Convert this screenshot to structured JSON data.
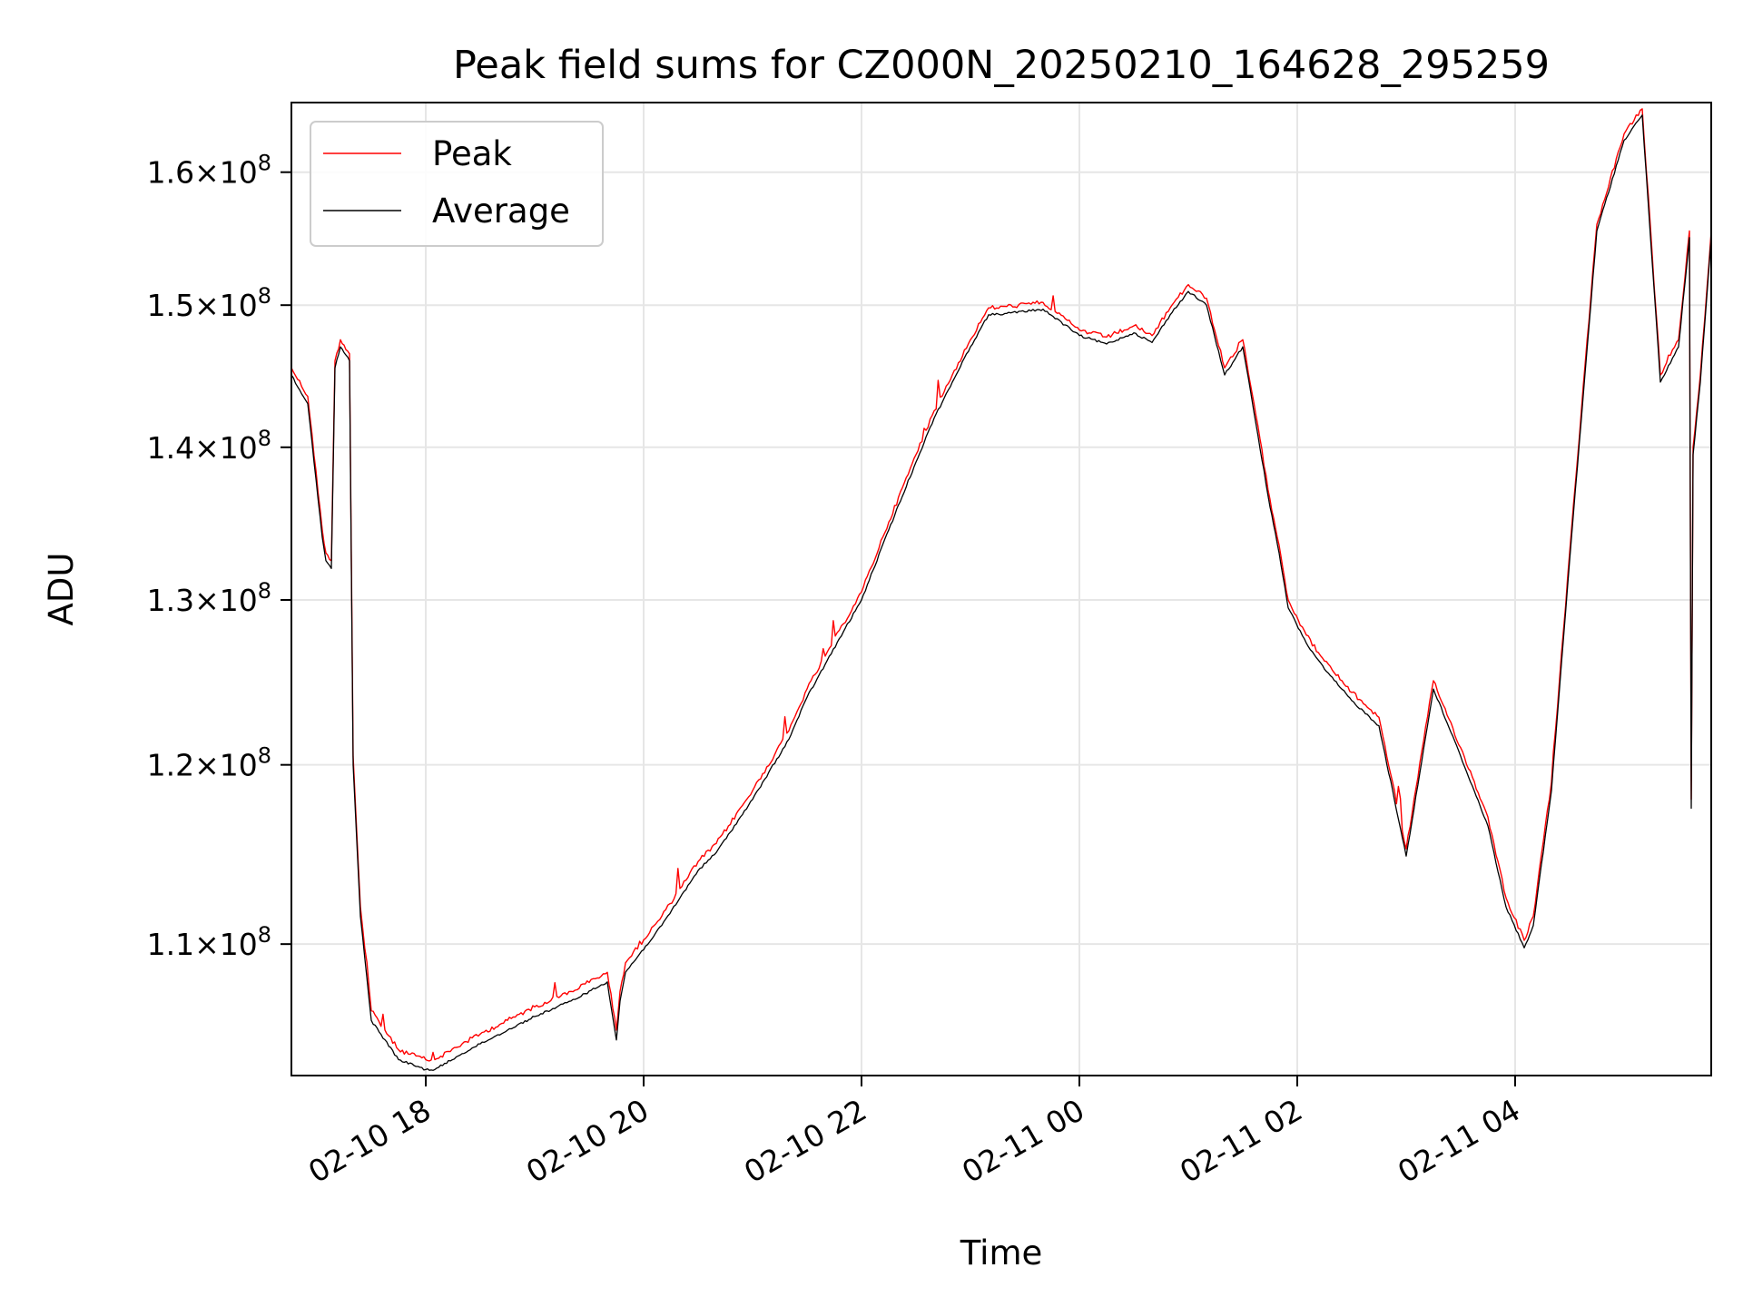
{
  "chart_data": {
    "type": "line",
    "title": "Peak field sums for CZ000N_20250210_164628_295259",
    "xlabel": "Time",
    "ylabel": "ADU",
    "x_scale": "time",
    "y_scale": "log",
    "xlim": [
      "2025-02-10 16:46",
      "2025-02-11 05:48"
    ],
    "ylim": [
      103200000,
      165500000
    ],
    "grid": true,
    "legend_position": "upper-left",
    "x_ticks": [
      {
        "value": "2025-02-10 18:00",
        "label": "02-10 18"
      },
      {
        "value": "2025-02-10 20:00",
        "label": "02-10 20"
      },
      {
        "value": "2025-02-10 22:00",
        "label": "02-10 22"
      },
      {
        "value": "2025-02-11 00:00",
        "label": "02-11 00"
      },
      {
        "value": "2025-02-11 02:00",
        "label": "02-11 02"
      },
      {
        "value": "2025-02-11 04:00",
        "label": "02-11 04"
      }
    ],
    "y_ticks": [
      {
        "value": 110000000,
        "mantissa": "1.1",
        "base": "10",
        "exponent": "8"
      },
      {
        "value": 120000000,
        "mantissa": "1.2",
        "base": "10",
        "exponent": "8"
      },
      {
        "value": 130000000,
        "mantissa": "1.3",
        "base": "10",
        "exponent": "8"
      },
      {
        "value": 140000000,
        "mantissa": "1.4",
        "base": "10",
        "exponent": "8"
      },
      {
        "value": 150000000,
        "mantissa": "1.5",
        "base": "10",
        "exponent": "8"
      },
      {
        "value": 160000000,
        "mantissa": "1.6",
        "base": "10",
        "exponent": "8"
      }
    ],
    "series": [
      {
        "name": "Peak",
        "color": "#ff0000",
        "x": [
          "2025-02-10 16:46",
          "2025-02-10 16:55",
          "2025-02-10 17:03",
          "2025-02-10 17:05",
          "2025-02-10 17:08",
          "2025-02-10 17:10",
          "2025-02-10 17:13",
          "2025-02-10 17:18",
          "2025-02-10 17:20",
          "2025-02-10 17:24",
          "2025-02-10 17:30",
          "2025-02-10 17:45",
          "2025-02-10 18:00",
          "2025-02-10 18:05",
          "2025-02-10 18:20",
          "2025-02-10 18:30",
          "2025-02-10 18:45",
          "2025-02-10 19:00",
          "2025-02-10 19:20",
          "2025-02-10 19:40",
          "2025-02-10 19:45",
          "2025-02-10 19:47",
          "2025-02-10 19:50",
          "2025-02-10 20:10",
          "2025-02-10 20:30",
          "2025-02-10 20:40",
          "2025-02-10 21:00",
          "2025-02-10 21:20",
          "2025-02-10 21:30",
          "2025-02-10 21:40",
          "2025-02-10 21:50",
          "2025-02-10 22:00",
          "2025-02-10 22:15",
          "2025-02-10 22:30",
          "2025-02-10 22:40",
          "2025-02-10 22:50",
          "2025-02-10 23:00",
          "2025-02-10 23:10",
          "2025-02-10 23:20",
          "2025-02-10 23:40",
          "2025-02-11 00:00",
          "2025-02-11 00:15",
          "2025-02-11 00:30",
          "2025-02-11 00:40",
          "2025-02-11 00:50",
          "2025-02-11 01:00",
          "2025-02-11 01:10",
          "2025-02-11 01:20",
          "2025-02-11 01:30",
          "2025-02-11 01:35",
          "2025-02-11 01:45",
          "2025-02-11 01:50",
          "2025-02-11 01:55",
          "2025-02-11 02:05",
          "2025-02-11 02:15",
          "2025-02-11 02:30",
          "2025-02-11 02:45",
          "2025-02-11 03:00",
          "2025-02-11 03:15",
          "2025-02-11 03:30",
          "2025-02-11 03:45",
          "2025-02-11 03:55",
          "2025-02-11 04:05",
          "2025-02-11 04:10",
          "2025-02-11 04:20",
          "2025-02-11 04:30",
          "2025-02-11 04:45",
          "2025-02-11 05:00",
          "2025-02-11 05:10",
          "2025-02-11 05:20",
          "2025-02-11 05:30",
          "2025-02-11 05:36",
          "2025-02-11 05:37",
          "2025-02-11 05:38",
          "2025-02-11 05:42",
          "2025-02-11 05:48"
        ],
        "values": [
          145500000,
          143500000,
          134500000,
          133000000,
          132500000,
          146000000,
          147500000,
          146500000,
          120500000,
          112000000,
          106500000,
          104500000,
          104000000,
          104000000,
          104800000,
          105300000,
          106000000,
          106700000,
          107500000,
          108500000,
          105500000,
          107500000,
          109000000,
          111500000,
          114500000,
          115500000,
          118500000,
          122000000,
          124500000,
          126500000,
          128500000,
          130500000,
          135000000,
          139500000,
          142500000,
          145000000,
          147500000,
          149800000,
          149900000,
          150200000,
          148200000,
          147700000,
          148500000,
          147800000,
          149800000,
          151500000,
          150500000,
          145500000,
          147500000,
          143800000,
          136500000,
          133500000,
          130000000,
          127800000,
          126200000,
          124300000,
          122800000,
          115200000,
          125000000,
          121000000,
          117000000,
          112500000,
          110200000,
          111500000,
          119000000,
          133000000,
          156000000,
          163000000,
          165000000,
          145000000,
          147500000,
          155500000,
          118000000,
          140000000,
          145000000,
          155500000
        ]
      },
      {
        "name": "Average",
        "color": "#000000",
        "x": [
          "2025-02-10 16:46",
          "2025-02-10 16:55",
          "2025-02-10 17:03",
          "2025-02-10 17:05",
          "2025-02-10 17:08",
          "2025-02-10 17:10",
          "2025-02-10 17:13",
          "2025-02-10 17:18",
          "2025-02-10 17:20",
          "2025-02-10 17:24",
          "2025-02-10 17:30",
          "2025-02-10 17:45",
          "2025-02-10 18:00",
          "2025-02-10 18:05",
          "2025-02-10 18:20",
          "2025-02-10 18:30",
          "2025-02-10 18:45",
          "2025-02-10 19:00",
          "2025-02-10 19:20",
          "2025-02-10 19:40",
          "2025-02-10 19:45",
          "2025-02-10 19:47",
          "2025-02-10 19:50",
          "2025-02-10 20:10",
          "2025-02-10 20:30",
          "2025-02-10 20:40",
          "2025-02-10 21:00",
          "2025-02-10 21:20",
          "2025-02-10 21:30",
          "2025-02-10 21:40",
          "2025-02-10 21:50",
          "2025-02-10 22:00",
          "2025-02-10 22:15",
          "2025-02-10 22:30",
          "2025-02-10 22:40",
          "2025-02-10 22:50",
          "2025-02-10 23:00",
          "2025-02-10 23:10",
          "2025-02-10 23:20",
          "2025-02-10 23:40",
          "2025-02-11 00:00",
          "2025-02-11 00:15",
          "2025-02-11 00:30",
          "2025-02-11 00:40",
          "2025-02-11 00:50",
          "2025-02-11 01:00",
          "2025-02-11 01:10",
          "2025-02-11 01:20",
          "2025-02-11 01:30",
          "2025-02-11 01:35",
          "2025-02-11 01:45",
          "2025-02-11 01:50",
          "2025-02-11 01:55",
          "2025-02-11 02:05",
          "2025-02-11 02:15",
          "2025-02-11 02:30",
          "2025-02-11 02:45",
          "2025-02-11 03:00",
          "2025-02-11 03:15",
          "2025-02-11 03:30",
          "2025-02-11 03:45",
          "2025-02-11 03:55",
          "2025-02-11 04:05",
          "2025-02-11 04:10",
          "2025-02-11 04:20",
          "2025-02-11 04:30",
          "2025-02-11 04:45",
          "2025-02-11 05:00",
          "2025-02-11 05:10",
          "2025-02-11 05:20",
          "2025-02-11 05:30",
          "2025-02-11 05:36",
          "2025-02-11 05:37",
          "2025-02-11 05:38",
          "2025-02-11 05:42",
          "2025-02-11 05:48"
        ],
        "values": [
          145000000,
          143000000,
          134000000,
          132500000,
          132000000,
          145500000,
          147000000,
          146000000,
          120000000,
          111500000,
          106000000,
          104000000,
          103500000,
          103500000,
          104300000,
          104800000,
          105500000,
          106200000,
          107000000,
          108000000,
          105000000,
          107000000,
          108500000,
          111000000,
          114000000,
          115000000,
          118000000,
          121500000,
          124000000,
          126000000,
          128000000,
          130000000,
          134500000,
          139000000,
          142000000,
          144500000,
          147000000,
          149300000,
          149400000,
          149700000,
          147800000,
          147200000,
          148000000,
          147300000,
          149300000,
          151000000,
          150000000,
          145000000,
          147000000,
          143300000,
          136000000,
          133000000,
          129500000,
          127300000,
          125700000,
          123800000,
          122300000,
          114800000,
          124500000,
          120500000,
          116500000,
          112000000,
          109800000,
          111000000,
          118500000,
          132500000,
          155500000,
          162500000,
          164500000,
          144500000,
          147000000,
          155000000,
          117500000,
          139500000,
          144500000,
          155000000
        ]
      }
    ]
  }
}
